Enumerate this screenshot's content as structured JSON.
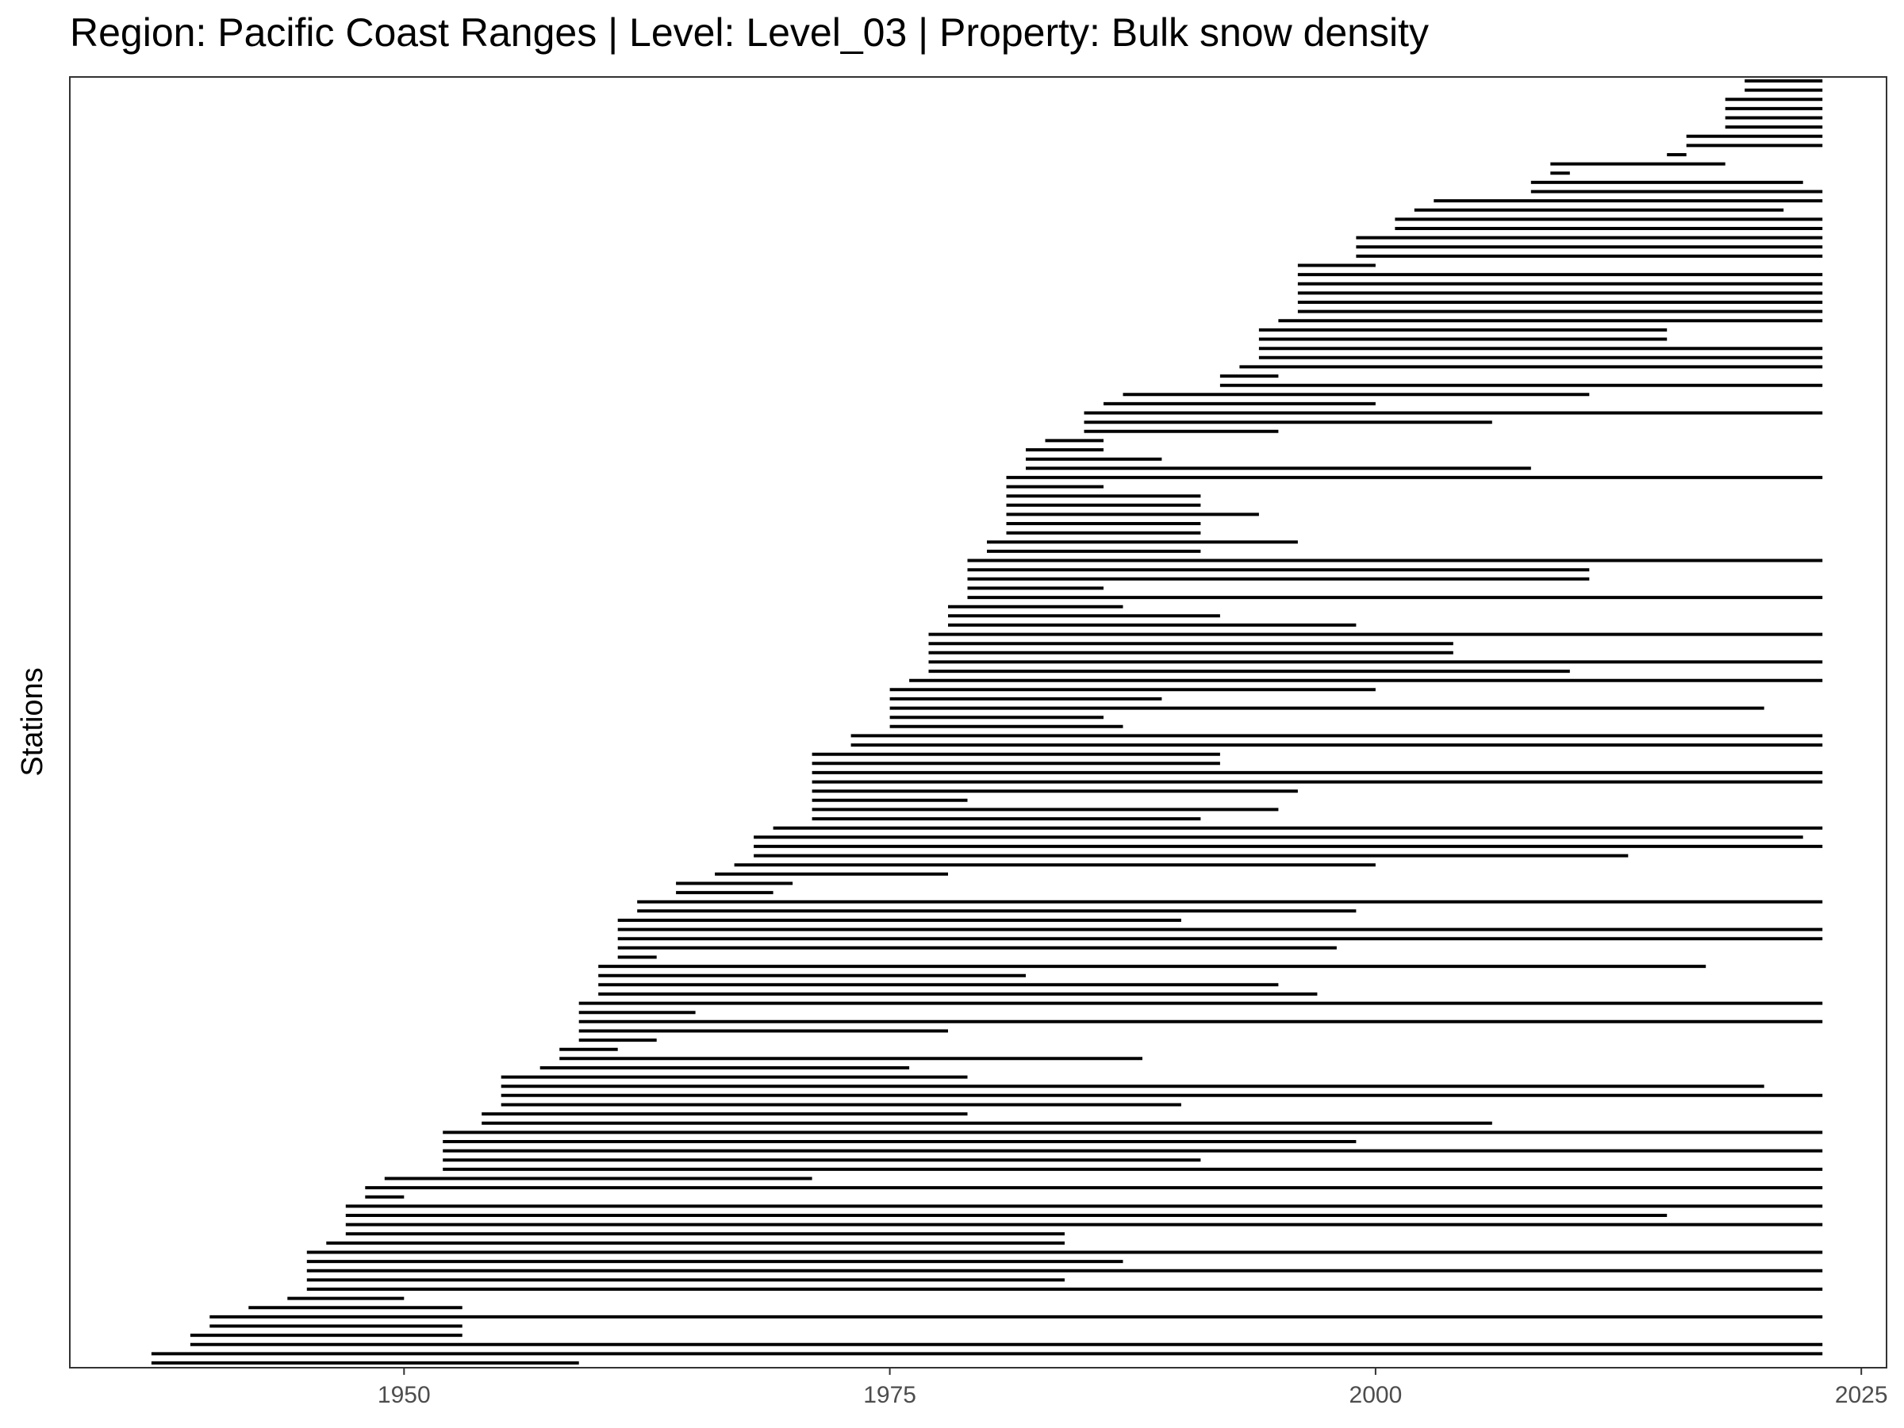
{
  "chart_data": {
    "type": "segment",
    "title": "Region: Pacific Coast Ranges | Level: Level_03 | Property: Bulk snow density",
    "xlabel": "",
    "ylabel": "Stations",
    "xlim": [
      1932.8,
      2026.3
    ],
    "x_ticks": [
      1950,
      1975,
      2000,
      2025
    ],
    "x_tick_labels": [
      "1950",
      "1975",
      "2000",
      "2025"
    ],
    "grid": false,
    "series": [
      {
        "values": [
          [
            2019,
            2023
          ],
          [
            2019,
            2023
          ],
          [
            2018,
            2023
          ],
          [
            2018,
            2023
          ],
          [
            2018,
            2023
          ],
          [
            2018,
            2023
          ],
          [
            2016,
            2023
          ],
          [
            2016,
            2023
          ],
          [
            2015,
            2016
          ],
          [
            2009,
            2018
          ],
          [
            2009,
            2010
          ],
          [
            2008,
            2022
          ],
          [
            2008,
            2023
          ],
          [
            2003,
            2023
          ],
          [
            2002,
            2021
          ],
          [
            2001,
            2023
          ],
          [
            2001,
            2023
          ],
          [
            1999,
            2023
          ],
          [
            1999,
            2023
          ],
          [
            1999,
            2023
          ],
          [
            1996,
            2000
          ],
          [
            1996,
            2023
          ],
          [
            1996,
            2023
          ],
          [
            1996,
            2023
          ],
          [
            1996,
            2023
          ],
          [
            1996,
            2023
          ],
          [
            1995,
            2023
          ],
          [
            1994,
            2015
          ],
          [
            1994,
            2015
          ],
          [
            1994,
            2023
          ],
          [
            1994,
            2023
          ],
          [
            1993,
            2023
          ],
          [
            1992,
            1995
          ],
          [
            1992,
            2023
          ],
          [
            1987,
            2011
          ],
          [
            1986,
            2000
          ],
          [
            1985,
            2023
          ],
          [
            1985,
            2006
          ],
          [
            1985,
            1995
          ],
          [
            1983,
            1986
          ],
          [
            1982,
            1986
          ],
          [
            1982,
            1989
          ],
          [
            1982,
            2008
          ],
          [
            1981,
            2023
          ],
          [
            1981,
            1986
          ],
          [
            1981,
            1991
          ],
          [
            1981,
            1991
          ],
          [
            1981,
            1994
          ],
          [
            1981,
            1991
          ],
          [
            1981,
            1991
          ],
          [
            1980,
            1996
          ],
          [
            1980,
            1991
          ],
          [
            1979,
            2023
          ],
          [
            1979,
            2011
          ],
          [
            1979,
            2011
          ],
          [
            1979,
            1986
          ],
          [
            1979,
            2023
          ],
          [
            1978,
            1987
          ],
          [
            1978,
            1992
          ],
          [
            1978,
            1999
          ],
          [
            1977,
            2023
          ],
          [
            1977,
            2004
          ],
          [
            1977,
            2004
          ],
          [
            1977,
            2023
          ],
          [
            1977,
            2010
          ],
          [
            1976,
            2023
          ],
          [
            1975,
            2000
          ],
          [
            1975,
            1989
          ],
          [
            1975,
            2020
          ],
          [
            1975,
            1986
          ],
          [
            1975,
            1987
          ],
          [
            1973,
            2023
          ],
          [
            1973,
            2023
          ],
          [
            1971,
            1992
          ],
          [
            1971,
            1992
          ],
          [
            1971,
            2023
          ],
          [
            1971,
            2023
          ],
          [
            1971,
            1996
          ],
          [
            1971,
            1979
          ],
          [
            1971,
            1995
          ],
          [
            1971,
            1991
          ],
          [
            1969,
            2023
          ],
          [
            1968,
            2022
          ],
          [
            1968,
            2023
          ],
          [
            1968,
            2013
          ],
          [
            1967,
            2000
          ],
          [
            1966,
            1978
          ],
          [
            1964,
            1970
          ],
          [
            1964,
            1969
          ],
          [
            1962,
            2023
          ],
          [
            1962,
            1999
          ],
          [
            1961,
            1990
          ],
          [
            1961,
            2023
          ],
          [
            1961,
            2023
          ],
          [
            1961,
            1998
          ],
          [
            1961,
            1963
          ],
          [
            1960,
            2017
          ],
          [
            1960,
            1982
          ],
          [
            1960,
            1995
          ],
          [
            1960,
            1997
          ],
          [
            1959,
            2023
          ],
          [
            1959,
            1965
          ],
          [
            1959,
            2023
          ],
          [
            1959,
            1978
          ],
          [
            1959,
            1963
          ],
          [
            1958,
            1961
          ],
          [
            1958,
            1988
          ],
          [
            1957,
            1976
          ],
          [
            1955,
            1979
          ],
          [
            1955,
            2020
          ],
          [
            1955,
            2023
          ],
          [
            1955,
            1990
          ],
          [
            1954,
            1979
          ],
          [
            1954,
            2006
          ],
          [
            1952,
            2023
          ],
          [
            1952,
            1999
          ],
          [
            1952,
            2023
          ],
          [
            1952,
            1991
          ],
          [
            1952,
            2023
          ],
          [
            1949,
            1971
          ],
          [
            1948,
            2023
          ],
          [
            1948,
            1950
          ],
          [
            1947,
            2023
          ],
          [
            1947,
            2015
          ],
          [
            1947,
            2023
          ],
          [
            1947,
            1984
          ],
          [
            1946,
            1984
          ],
          [
            1945,
            2023
          ],
          [
            1945,
            1987
          ],
          [
            1945,
            2023
          ],
          [
            1945,
            1984
          ],
          [
            1945,
            2023
          ],
          [
            1944,
            1950
          ],
          [
            1942,
            1953
          ],
          [
            1940,
            2023
          ],
          [
            1940,
            1953
          ],
          [
            1939,
            1953
          ],
          [
            1939,
            2023
          ],
          [
            1937,
            2023
          ],
          [
            1937,
            1959
          ]
        ]
      }
    ]
  }
}
